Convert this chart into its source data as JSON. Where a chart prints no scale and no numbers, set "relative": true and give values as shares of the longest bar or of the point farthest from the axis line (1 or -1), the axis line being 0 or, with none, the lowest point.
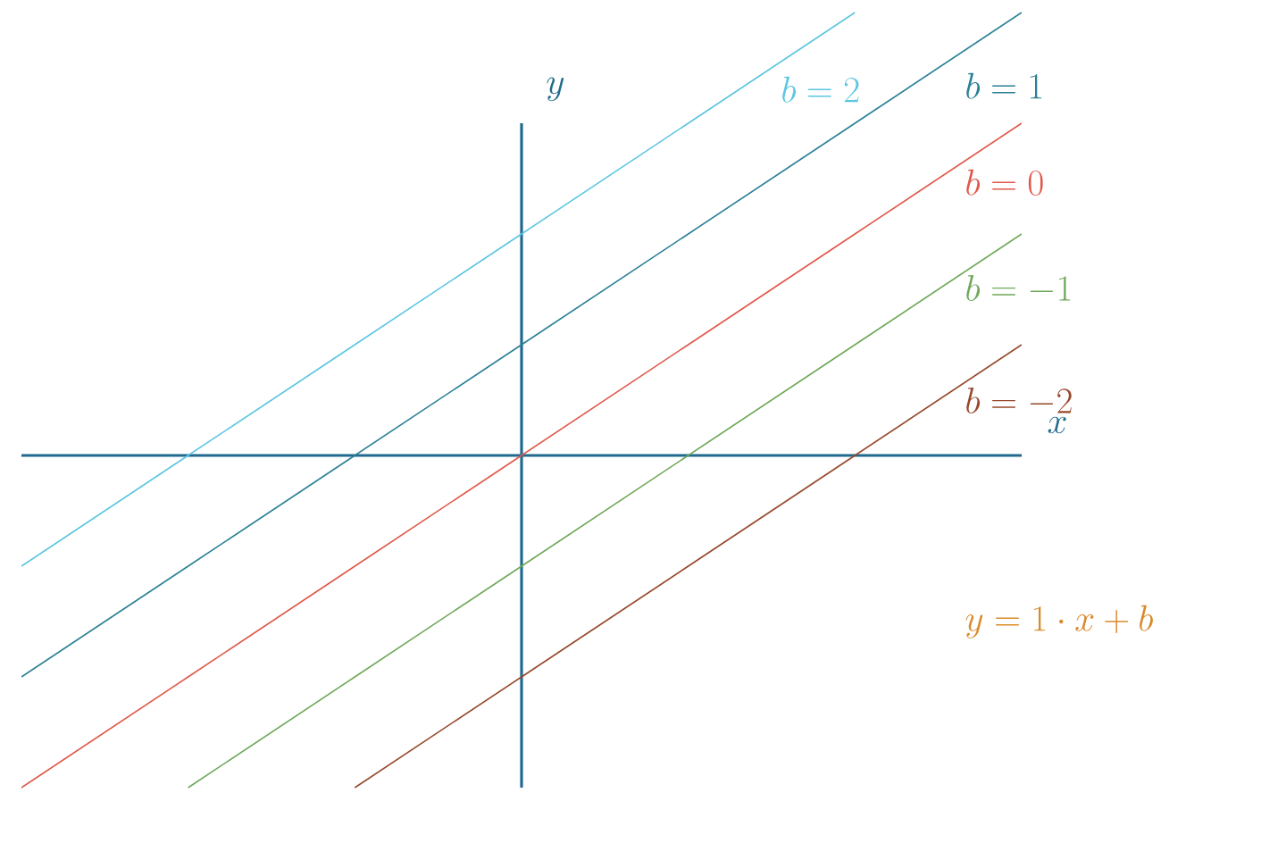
{
  "chart_data": {
    "type": "line",
    "relative": true,
    "xlabel": "x",
    "ylabel": "y",
    "categories": [
      null,
      null,
      null,
      null,
      null,
      null,
      null
    ],
    "series": [
      {
        "name": "b = 2",
        "color": "#5cc6e0",
        "values": [
          -0.25,
          0,
          0.25,
          0.5,
          0.75,
          1,
          null
        ]
      },
      {
        "name": "b = 1",
        "color": "#2a8096",
        "values": [
          -0.5,
          -0.25,
          0,
          0.25,
          0.5,
          0.75,
          1
        ]
      },
      {
        "name": "b = 0",
        "color": "#e0584a",
        "values": [
          -0.75,
          -0.5,
          -0.25,
          0,
          0.25,
          0.5,
          0.75
        ]
      },
      {
        "name": "b = -1",
        "color": "#6fa85a",
        "values": [
          null,
          -0.75,
          -0.5,
          -0.25,
          0,
          0.25,
          0.5
        ]
      },
      {
        "name": "b = -2",
        "color": "#96482a",
        "values": [
          null,
          null,
          -0.75,
          -0.5,
          -0.25,
          0,
          0.25
        ]
      }
    ],
    "ref_lines": [
      {
        "axis": "y",
        "value": 0,
        "color": "#1f6a8e"
      }
    ],
    "annotations": [
      "y = 1 \\cdot x + b"
    ]
  }
}
